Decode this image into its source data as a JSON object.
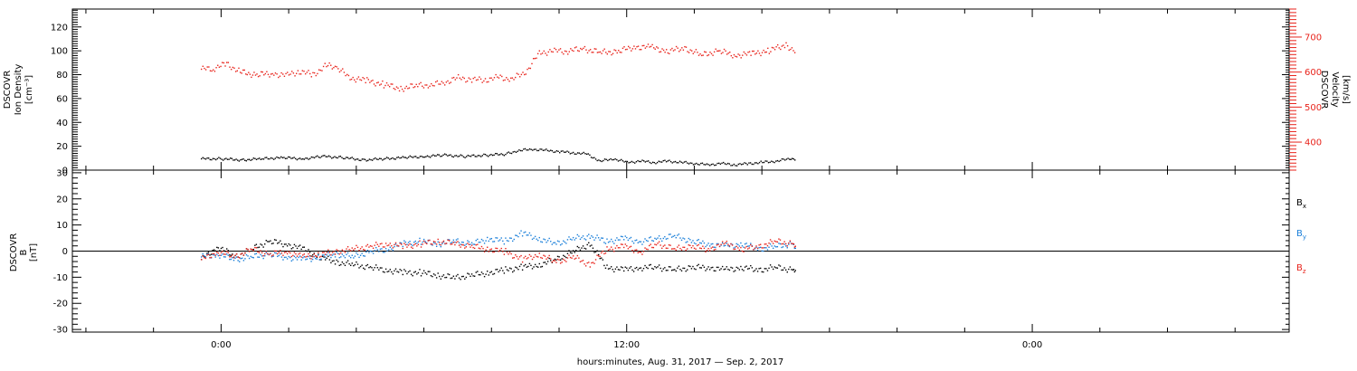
{
  "chart_data": [
    {
      "type": "scatter",
      "panel": "top",
      "ylabel": [
        "DSCOVR",
        "Ion Density",
        "[cm⁻³]"
      ],
      "ylim": [
        0,
        135
      ],
      "yticks": [
        "0",
        "20",
        "40",
        "60",
        "80",
        "100",
        "120"
      ],
      "y2label": [
        "DSCOVR",
        "Velocity",
        "[km/s]"
      ],
      "y2lim": [
        320,
        780
      ],
      "y2ticks": [
        "400",
        "500",
        "600",
        "700"
      ],
      "y2_color": "#e8231b",
      "series": [
        {
          "axis": "y2",
          "color": "#e8231b",
          "x": [
            -0.6,
            -0.25,
            0.15,
            0.55,
            1.0,
            1.5,
            1.9,
            2.3,
            2.7,
            3.1,
            3.4,
            3.8,
            4.3,
            4.8,
            5.3,
            5.8,
            6.2,
            6.6,
            7.0,
            7.4,
            7.8,
            8.2,
            8.6,
            9.0,
            9.4,
            9.8,
            10.2,
            10.7,
            11.2,
            11.7,
            12.2,
            12.7,
            13.2,
            13.7,
            14.2,
            14.7,
            15.2,
            15.7,
            16.2,
            16.7,
            17.0
          ],
          "y": [
            610,
            612,
            625,
            602,
            594,
            598,
            592,
            604,
            594,
            620,
            615,
            585,
            577,
            566,
            555,
            563,
            565,
            572,
            585,
            580,
            580,
            586,
            582,
            602,
            656,
            662,
            662,
            668,
            658,
            660,
            674,
            672,
            662,
            670,
            650,
            662,
            650,
            654,
            663,
            680,
            658
          ]
        }
      ]
    },
    {
      "type": "scatter",
      "panel": "top",
      "series": [
        {
          "axis": "y",
          "color": "#000000",
          "x": [
            -0.6,
            0.0,
            0.6,
            1.2,
            1.8,
            2.4,
            3.0,
            3.6,
            4.2,
            4.8,
            5.4,
            6.0,
            6.6,
            7.2,
            7.8,
            8.4,
            8.8,
            9.2,
            9.6,
            10.0,
            10.4,
            10.8,
            11.2,
            11.6,
            12.0,
            12.4,
            12.8,
            13.2,
            13.6,
            14.0,
            14.4,
            14.8,
            15.2,
            15.6,
            16.0,
            16.4,
            16.8,
            17.0
          ],
          "y": [
            10,
            10,
            9,
            10,
            11,
            10,
            12,
            11,
            9,
            10,
            11,
            12,
            13,
            12,
            13,
            14,
            17,
            18,
            17,
            16,
            15,
            14,
            8,
            10,
            7,
            8,
            7,
            8,
            7,
            6,
            5,
            6,
            5,
            6,
            7,
            8,
            10,
            10
          ]
        }
      ]
    },
    {
      "type": "scatter",
      "panel": "bottom",
      "ylabel": [
        "DSCOVR",
        "B",
        "[nT]"
      ],
      "ylim": [
        -31,
        31
      ],
      "yticks": [
        "-30",
        "-20",
        "-10",
        "0",
        "10",
        "20",
        "30"
      ],
      "zero_line": true,
      "series": [
        {
          "name": "Bx",
          "color": "#000000",
          "x": [
            -0.6,
            -0.1,
            0.4,
            0.9,
            1.4,
            1.9,
            2.4,
            2.9,
            3.4,
            3.9,
            4.4,
            4.9,
            5.4,
            5.9,
            6.4,
            6.9,
            7.4,
            7.9,
            8.4,
            8.9,
            9.4,
            9.9,
            10.4,
            10.9,
            11.4,
            11.9,
            12.4,
            12.9,
            13.4,
            13.9,
            14.4,
            14.9,
            15.4,
            15.9,
            16.4,
            16.9,
            17.0
          ],
          "y": [
            -3,
            2,
            -2,
            1,
            4,
            3,
            1,
            -2,
            -4,
            -5,
            -6,
            -7,
            -8,
            -8,
            -9,
            -10,
            -9,
            -8,
            -7,
            -6,
            -5,
            -3,
            0,
            3,
            -6,
            -7,
            -6,
            -6,
            -7,
            -6,
            -6,
            -7,
            -6,
            -7,
            -6,
            -7,
            -7
          ]
        },
        {
          "name": "By",
          "color": "#1a7fd9",
          "x": [
            -0.6,
            -0.1,
            0.4,
            0.9,
            1.4,
            1.9,
            2.4,
            2.9,
            3.4,
            3.9,
            4.4,
            4.9,
            5.4,
            5.9,
            6.4,
            6.9,
            7.4,
            7.9,
            8.4,
            8.9,
            9.4,
            9.9,
            10.4,
            10.9,
            11.4,
            11.9,
            12.4,
            12.9,
            13.4,
            13.9,
            14.4,
            14.9,
            15.4,
            15.9,
            16.4,
            16.9,
            17.0
          ],
          "y": [
            -2,
            -1,
            -3,
            -2,
            -1,
            -2,
            -3,
            -2,
            -1,
            -2,
            0,
            1,
            3,
            4,
            3,
            4,
            3,
            5,
            4,
            7,
            5,
            3,
            5,
            6,
            4,
            5,
            4,
            5,
            6,
            4,
            3,
            2,
            3,
            1,
            2,
            3,
            1
          ]
        },
        {
          "name": "Bz",
          "color": "#e8231b",
          "x": [
            -0.6,
            -0.1,
            0.4,
            0.9,
            1.4,
            1.9,
            2.4,
            2.9,
            3.4,
            3.9,
            4.4,
            4.9,
            5.4,
            5.9,
            6.4,
            6.9,
            7.4,
            7.9,
            8.4,
            8.9,
            9.4,
            9.9,
            10.4,
            10.9,
            11.4,
            11.9,
            12.4,
            12.9,
            13.4,
            13.9,
            14.4,
            14.9,
            15.4,
            15.9,
            16.4,
            16.9,
            17.0
          ],
          "y": [
            -3,
            0,
            -2,
            1,
            -1,
            0,
            -2,
            -1,
            0,
            1,
            2,
            3,
            2,
            3,
            4,
            3,
            2,
            1,
            0,
            -3,
            -1,
            -4,
            -2,
            -5,
            1,
            2,
            0,
            3,
            1,
            2,
            1,
            3,
            1,
            2,
            4,
            3,
            2
          ]
        }
      ],
      "legend": [
        {
          "label": "B",
          "sub": "x",
          "color": "#000000"
        },
        {
          "label": "B",
          "sub": "y",
          "color": "#1a7fd9"
        },
        {
          "label": "B",
          "sub": "z",
          "color": "#e8231b"
        }
      ]
    }
  ],
  "x_axis": {
    "xlim": [
      -4.4,
      31.6
    ],
    "major_ticks": [
      0,
      12,
      24
    ],
    "tick_labels": [
      "0:00",
      "12:00",
      "0:00"
    ],
    "minor_step": 2,
    "xlabel": "hours:minutes, Aug. 31, 2017 — Sep.  2, 2017"
  }
}
